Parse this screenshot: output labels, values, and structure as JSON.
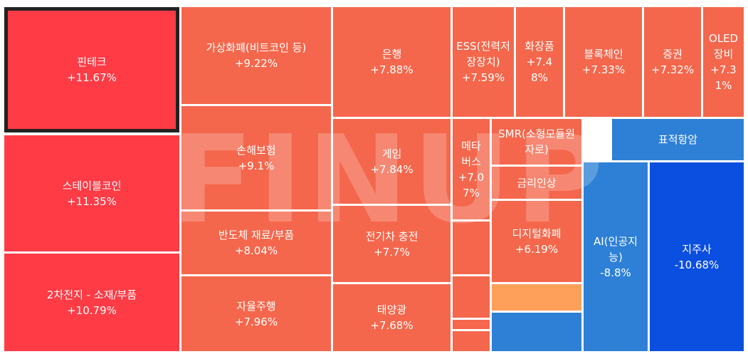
{
  "watermark": "FINUP",
  "chart_data": {
    "type": "treemap",
    "colors": {
      "strong_up": "#ff3b45",
      "up": "#f4674c",
      "mild_up": "#ffa05a",
      "down": "#2d80d6",
      "strong_down": "#0b4fe0",
      "selected_border": "#222222"
    },
    "tiles": [
      {
        "name": "핀테크",
        "change": "+11.67%",
        "value": 11.67,
        "selected": true
      },
      {
        "name": "스테이블코인",
        "change": "+11.35%",
        "value": 11.35
      },
      {
        "name": "2차전지 - 소재/부품",
        "change": "+10.79%",
        "value": 10.79
      },
      {
        "name": "가상화폐(비트코인 등)",
        "change": "+9.22%",
        "value": 9.22
      },
      {
        "name": "손해보험",
        "change": "+9.1%",
        "value": 9.1
      },
      {
        "name": "반도체 재료/부품",
        "change": "+8.04%",
        "value": 8.04
      },
      {
        "name": "자율주행",
        "change": "+7.96%",
        "value": 7.96
      },
      {
        "name": "은행",
        "change": "+7.88%",
        "value": 7.88
      },
      {
        "name": "게임",
        "change": "+7.84%",
        "value": 7.84
      },
      {
        "name": "전기차 충전",
        "change": "+7.7%",
        "value": 7.7
      },
      {
        "name": "태양광",
        "change": "+7.68%",
        "value": 7.68
      },
      {
        "name": "ESS(전력저장장치)",
        "change": "+7.59%",
        "value": 7.59
      },
      {
        "name": "화장품",
        "change": "+7.48%",
        "value": 7.48
      },
      {
        "name": "블록체인",
        "change": "+7.33%",
        "value": 7.33
      },
      {
        "name": "증권",
        "change": "+7.32%",
        "value": 7.32
      },
      {
        "name": "OLED 장비",
        "change": "+7.31%",
        "value": 7.31
      },
      {
        "name": "메타버스",
        "change": "+7.07%",
        "value": 7.07
      },
      {
        "name": "SMR(소형모듈원자로)",
        "change": "",
        "value": null
      },
      {
        "name": "금리인상",
        "change": "",
        "value": null
      },
      {
        "name": "디지털화폐",
        "change": "+6.19%",
        "value": 6.19
      },
      {
        "name": "표적항암",
        "change": "",
        "value": null
      },
      {
        "name": "AI(인공지능)",
        "change": "-8.8%",
        "value": -8.8
      },
      {
        "name": "지주사",
        "change": "-10.68%",
        "value": -10.68
      },
      {
        "name": "",
        "change": "",
        "value": null
      },
      {
        "name": "",
        "change": "",
        "value": null
      },
      {
        "name": "",
        "change": "",
        "value": null
      },
      {
        "name": "",
        "change": "",
        "value": null
      },
      {
        "name": "",
        "change": "",
        "value": null
      },
      {
        "name": "",
        "change": "",
        "value": null
      }
    ]
  }
}
